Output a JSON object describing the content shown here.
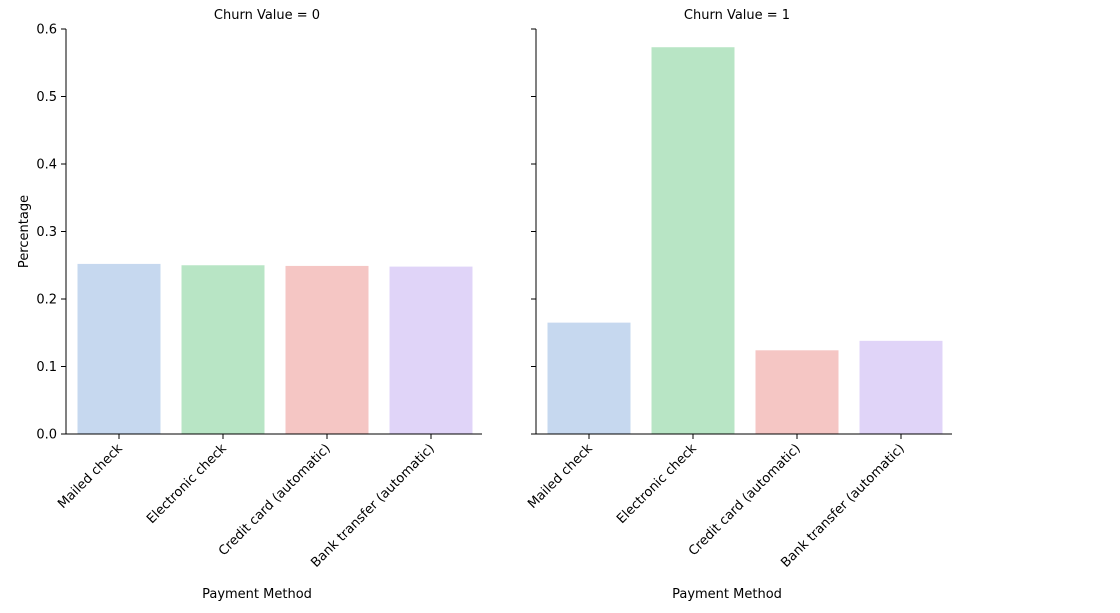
{
  "chart_data": [
    {
      "type": "bar",
      "title": "Churn Value = 0",
      "xlabel": "Payment Method",
      "ylabel": "Percentage",
      "categories": [
        "Mailed check",
        "Electronic check",
        "Credit card (automatic)",
        "Bank transfer (automatic)"
      ],
      "values": [
        0.252,
        0.25,
        0.249,
        0.248
      ],
      "ylim": [
        0,
        0.6
      ],
      "yticks": [
        "0.0",
        "0.1",
        "0.2",
        "0.3",
        "0.4",
        "0.5",
        "0.6"
      ],
      "grid": false
    },
    {
      "type": "bar",
      "title": "Churn Value = 1",
      "xlabel": "Payment Method",
      "ylabel": "",
      "categories": [
        "Mailed check",
        "Electronic check",
        "Credit card (automatic)",
        "Bank transfer (automatic)"
      ],
      "values": [
        0.165,
        0.573,
        0.124,
        0.138
      ],
      "ylim": [
        0,
        0.6
      ],
      "yticks": [
        "0.0",
        "0.1",
        "0.2",
        "0.3",
        "0.4",
        "0.5",
        "0.6"
      ],
      "grid": false
    }
  ],
  "colors": {
    "bars": [
      "#c6d8ef",
      "#b8e5c5",
      "#f5c6c4",
      "#e0d4f8"
    ],
    "axis": "#000000"
  }
}
